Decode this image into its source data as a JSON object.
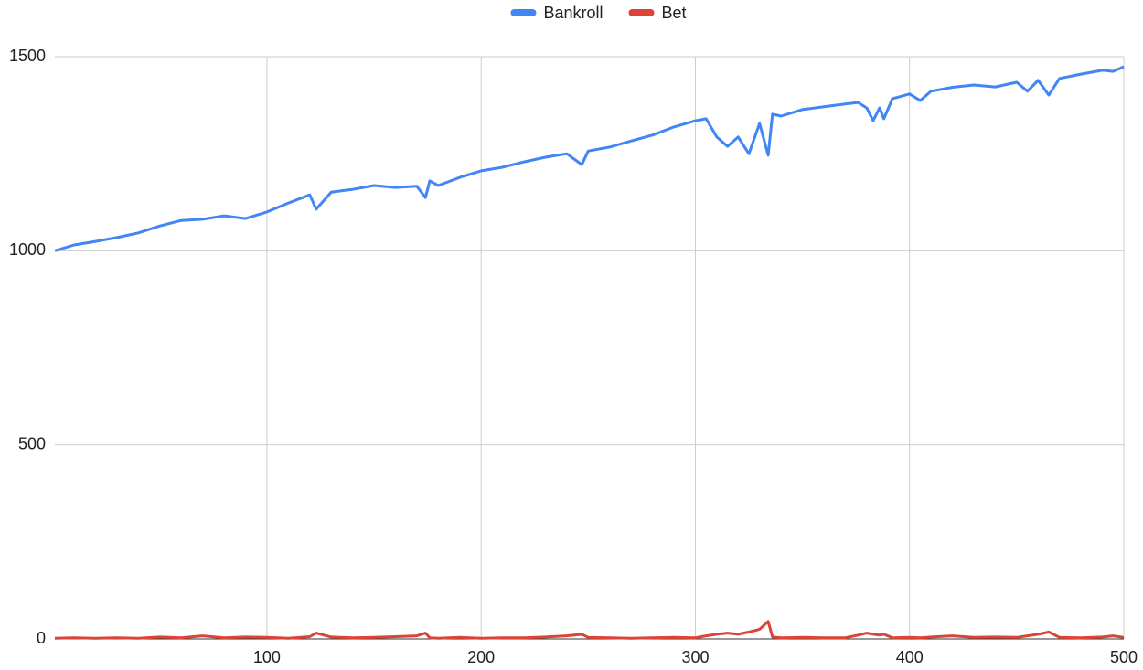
{
  "chart_data": {
    "type": "line",
    "x": [
      1,
      10,
      20,
      30,
      40,
      50,
      60,
      70,
      80,
      90,
      100,
      110,
      120,
      123,
      130,
      140,
      150,
      160,
      170,
      174,
      176,
      180,
      190,
      200,
      210,
      220,
      230,
      240,
      247,
      250,
      260,
      270,
      280,
      290,
      300,
      305,
      310,
      315,
      320,
      325,
      330,
      334,
      336,
      340,
      350,
      360,
      370,
      376,
      380,
      383,
      386,
      388,
      392,
      400,
      405,
      410,
      420,
      430,
      440,
      450,
      455,
      460,
      465,
      470,
      480,
      490,
      495,
      500
    ],
    "series": [
      {
        "name": "Bankroll",
        "color": "#4285f4",
        "values": [
          1000,
          1015,
          1024,
          1034,
          1046,
          1064,
          1078,
          1081,
          1090,
          1083,
          1100,
          1123,
          1144,
          1107,
          1151,
          1158,
          1168,
          1163,
          1166,
          1137,
          1180,
          1168,
          1189,
          1206,
          1215,
          1229,
          1241,
          1250,
          1222,
          1257,
          1267,
          1283,
          1298,
          1319,
          1335,
          1340,
          1293,
          1269,
          1293,
          1250,
          1328,
          1246,
          1352,
          1347,
          1364,
          1371,
          1378,
          1382,
          1368,
          1335,
          1368,
          1340,
          1392,
          1404,
          1387,
          1411,
          1421,
          1427,
          1422,
          1434,
          1411,
          1439,
          1401,
          1444,
          1455,
          1465,
          1462,
          1474
        ]
      },
      {
        "name": "Bet",
        "color": "#db4437",
        "values": [
          2,
          3,
          2,
          3,
          2,
          5,
          3,
          8,
          3,
          5,
          4,
          2,
          6,
          15,
          5,
          3,
          4,
          6,
          8,
          15,
          3,
          2,
          4,
          2,
          3,
          3,
          5,
          8,
          12,
          4,
          3,
          2,
          3,
          4,
          3,
          8,
          12,
          15,
          12,
          18,
          25,
          45,
          5,
          3,
          4,
          3,
          3,
          10,
          15,
          12,
          10,
          12,
          3,
          4,
          3,
          5,
          8,
          4,
          5,
          4,
          8,
          12,
          18,
          4,
          3,
          5,
          8,
          4
        ]
      }
    ],
    "xlim": [
      1,
      500
    ],
    "xticks": [
      100,
      200,
      300,
      400,
      500
    ],
    "ylim": [
      0,
      1500
    ],
    "yticks": [
      0,
      500,
      1000,
      1500
    ],
    "grid": true,
    "legend": "top"
  }
}
